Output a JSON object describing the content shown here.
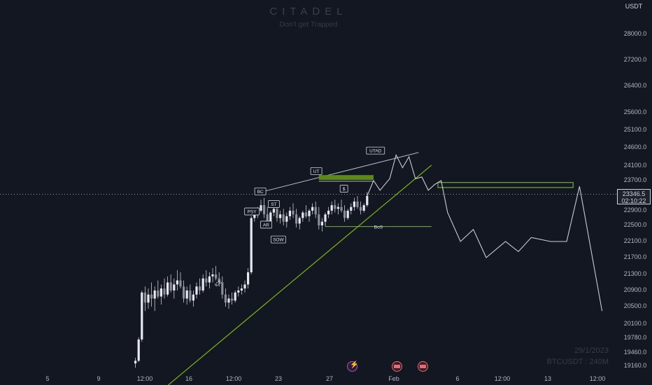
{
  "watermark": {
    "title": "CITADEL",
    "subtitle": "Don't get Trapped",
    "date": "29/1/2023",
    "symbol": "BTCUSDT  :  240M"
  },
  "quote_currency": "USDT",
  "current_price": {
    "value": "23346.5",
    "countdown": "02:10:22"
  },
  "colors": {
    "background": "#131722",
    "candle_body": "#c9ccd3",
    "wick": "#c9ccd3",
    "trendline": "#7cb518",
    "supply_zone": "#5c8a1a",
    "projection": "#c9ccd3",
    "zone_outline": "#8bc34a"
  },
  "chart_data": {
    "type": "candlestick",
    "y_ticks": [
      "28000.0",
      "27200.0",
      "26400.0",
      "25600.0",
      "25100.0",
      "24600.0",
      "24100.0",
      "23700.0",
      "23300.0",
      "22900.0",
      "22500.0",
      "22100.0",
      "21700.0",
      "21300.0",
      "20900.0",
      "20500.0",
      "20100.0",
      "19780.0",
      "19460.0",
      "19160.0"
    ],
    "x_ticks": [
      "5",
      "9",
      "12:00",
      "16",
      "12:00",
      "23",
      "27",
      "Feb",
      "6",
      "12:00",
      "13",
      "12:00"
    ],
    "ylim": [
      19100,
      28500
    ],
    "annotations": {
      "labels": [
        "BC",
        "PSY",
        "AR",
        "ST",
        "SOW",
        "UT",
        "UTAD",
        "$",
        "BoS",
        "ICE"
      ]
    },
    "candles": [
      [
        20.5,
        19220,
        19350,
        19120,
        19280
      ],
      [
        21.0,
        19280,
        19800,
        19250,
        19750
      ],
      [
        21.5,
        19750,
        20900,
        19700,
        20850
      ],
      [
        22.0,
        20850,
        21000,
        20400,
        20600
      ],
      [
        22.5,
        20600,
        20950,
        20450,
        20800
      ],
      [
        23.0,
        20800,
        21100,
        20500,
        20700
      ],
      [
        23.5,
        20700,
        21000,
        20400,
        20900
      ],
      [
        24.0,
        20900,
        21150,
        20700,
        20750
      ],
      [
        24.5,
        20750,
        21050,
        20550,
        20950
      ],
      [
        25.0,
        20950,
        21200,
        20700,
        20800
      ],
      [
        25.5,
        20800,
        21250,
        20750,
        21100
      ],
      [
        26.0,
        21100,
        21300,
        20850,
        20900
      ],
      [
        26.5,
        20900,
        21200,
        20700,
        21050
      ],
      [
        27.0,
        21050,
        21400,
        20900,
        21150
      ],
      [
        27.5,
        21150,
        21350,
        20950,
        21000
      ],
      [
        28.0,
        21000,
        21150,
        20600,
        20700
      ],
      [
        28.5,
        20700,
        21000,
        20550,
        20900
      ],
      [
        29.0,
        20900,
        21050,
        20600,
        20650
      ],
      [
        29.5,
        20650,
        20900,
        20500,
        20800
      ],
      [
        30.0,
        20800,
        21100,
        20700,
        21000
      ],
      [
        30.5,
        21000,
        21200,
        20800,
        20900
      ],
      [
        31.0,
        20900,
        21300,
        20850,
        21200
      ],
      [
        31.5,
        21200,
        21400,
        21000,
        21100
      ],
      [
        32.0,
        21100,
        21350,
        20950,
        21250
      ],
      [
        32.5,
        21250,
        21450,
        21100,
        21300
      ],
      [
        33.0,
        21300,
        21500,
        21150,
        21200
      ],
      [
        33.5,
        21200,
        21350,
        21000,
        21100
      ],
      [
        34.0,
        21100,
        21250,
        20700,
        20800
      ],
      [
        34.5,
        20800,
        20950,
        20500,
        20600
      ],
      [
        35.0,
        20600,
        20800,
        20450,
        20700
      ],
      [
        35.5,
        20700,
        20850,
        20550,
        20650
      ],
      [
        36.0,
        20650,
        20900,
        20600,
        20850
      ],
      [
        36.5,
        20850,
        21000,
        20750,
        20900
      ],
      [
        37.0,
        20900,
        21050,
        20800,
        20950
      ],
      [
        37.5,
        20950,
        21150,
        20850,
        21050
      ],
      [
        38.0,
        21050,
        21450,
        20950,
        21350
      ],
      [
        38.5,
        21350,
        22750,
        21300,
        22700
      ],
      [
        39.0,
        22700,
        22850,
        22600,
        22800
      ],
      [
        39.5,
        22800,
        23000,
        22700,
        22900
      ],
      [
        40.0,
        22900,
        23200,
        22850,
        23050
      ],
      [
        40.5,
        23050,
        23250,
        22700,
        22800
      ],
      [
        41.0,
        22800,
        23000,
        22450,
        22600
      ],
      [
        41.5,
        22600,
        22900,
        22500,
        22850
      ],
      [
        42.0,
        22850,
        23100,
        22750,
        22950
      ],
      [
        42.5,
        22950,
        23050,
        22600,
        22700
      ],
      [
        43.0,
        22700,
        22900,
        22550,
        22800
      ],
      [
        43.5,
        22800,
        22950,
        22500,
        22600
      ],
      [
        44.0,
        22600,
        22850,
        22450,
        22750
      ],
      [
        44.5,
        22750,
        23000,
        22650,
        22900
      ],
      [
        45.0,
        22900,
        23100,
        22700,
        22800
      ],
      [
        45.5,
        22800,
        22950,
        22450,
        22550
      ],
      [
        46.0,
        22550,
        22750,
        22400,
        22700
      ],
      [
        46.5,
        22700,
        22900,
        22600,
        22850
      ],
      [
        47.0,
        22850,
        23050,
        22700,
        22750
      ],
      [
        47.5,
        22750,
        22950,
        22600,
        22900
      ],
      [
        48.0,
        22900,
        23100,
        22800,
        23000
      ],
      [
        48.5,
        23000,
        23150,
        22700,
        22800
      ],
      [
        49.0,
        22800,
        23000,
        22400,
        22500
      ],
      [
        49.5,
        22500,
        22700,
        22350,
        22600
      ],
      [
        50.0,
        22600,
        22850,
        22500,
        22800
      ],
      [
        50.5,
        22800,
        23000,
        22700,
        22900
      ],
      [
        51.0,
        22900,
        23150,
        22800,
        23050
      ],
      [
        51.5,
        23050,
        23200,
        22850,
        22950
      ],
      [
        52.0,
        22950,
        23100,
        22800,
        23000
      ],
      [
        52.5,
        23000,
        23200,
        22850,
        22900
      ],
      [
        53.0,
        22900,
        23050,
        22600,
        22700
      ],
      [
        53.5,
        22700,
        22950,
        22650,
        22900
      ],
      [
        54.0,
        22900,
        23100,
        22800,
        23000
      ],
      [
        54.5,
        23000,
        23250,
        22900,
        23150
      ],
      [
        55.0,
        23150,
        23300,
        22950,
        23000
      ],
      [
        55.5,
        23000,
        23150,
        22800,
        22900
      ],
      [
        56.0,
        22900,
        23100,
        22850,
        23050
      ],
      [
        56.5,
        23050,
        23400,
        23000,
        23300
      ]
    ],
    "projection_path": [
      [
        56.5,
        23300
      ],
      [
        57.5,
        23700
      ],
      [
        58.5,
        23450
      ],
      [
        59.5,
        23650
      ],
      [
        60.0,
        23750
      ],
      [
        61.0,
        24400
      ],
      [
        62.0,
        24050
      ],
      [
        63.0,
        24350
      ],
      [
        64.0,
        23750
      ],
      [
        65.0,
        23800
      ],
      [
        66.0,
        23450
      ],
      [
        67.0,
        23600
      ],
      [
        68.0,
        23700
      ],
      [
        69.0,
        22850
      ],
      [
        71.0,
        22100
      ],
      [
        73.0,
        22400
      ],
      [
        75.0,
        21700
      ],
      [
        78.0,
        22100
      ],
      [
        80.0,
        21850
      ],
      [
        82.0,
        22200
      ],
      [
        85.0,
        22100
      ],
      [
        87.5,
        22100
      ],
      [
        89.5,
        23550
      ],
      [
        93.0,
        20400
      ]
    ],
    "trendline": [
      [
        24.5,
        18600
      ],
      [
        66.5,
        24120
      ]
    ],
    "resistance_line": [
      [
        39.5,
        23380
      ],
      [
        64.5,
        24470
      ]
    ],
    "supply_zone": {
      "x0": 49.0,
      "x1": 57.5,
      "y_top": 23850,
      "y_bottom": 23720
    },
    "target_zone": {
      "x0": 67.5,
      "x1": 88.5,
      "y_top": 23650,
      "y_bottom": 23520
    },
    "bos_line": {
      "x0": 50.0,
      "x1": 66.5,
      "y": 22470
    }
  }
}
